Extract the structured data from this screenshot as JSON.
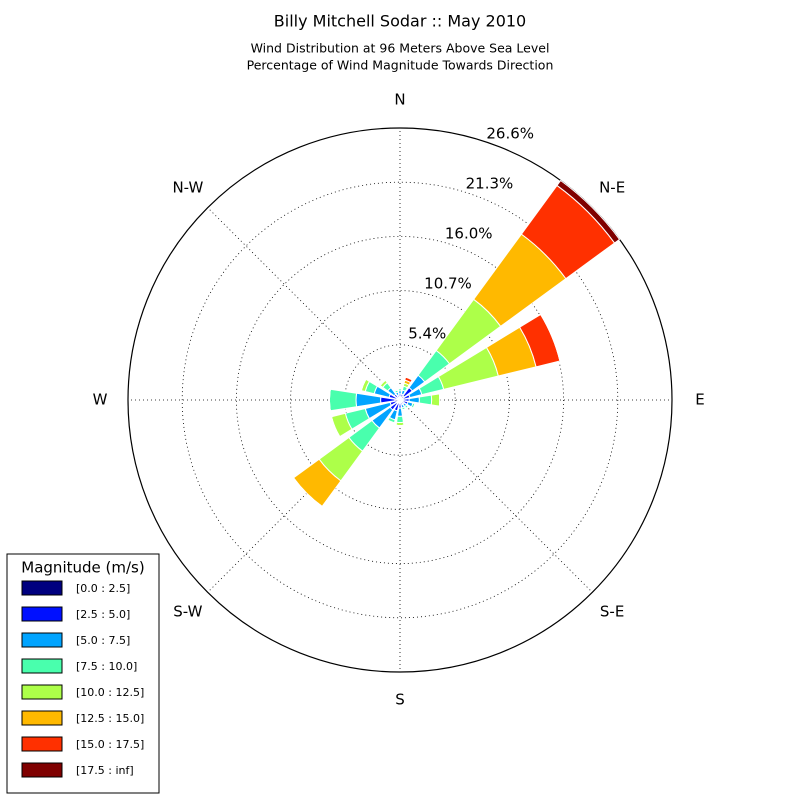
{
  "chart_data": {
    "type": "windrose",
    "title": "Billy Mitchell Sodar :: May 2010",
    "subtitle": [
      "Wind Distribution at 96 Meters Above Sea Level",
      "Percentage of Wind Magnitude Towards Direction"
    ],
    "legend_title": "Magnitude (m/s)",
    "legend": "lower left",
    "x": [
      0,
      22.5,
      45,
      67.5,
      90,
      112.5,
      135,
      157.5,
      180,
      202.5,
      225,
      247.5,
      270,
      292.5,
      315,
      337.5
    ],
    "xticks": [
      {
        "value": 0,
        "label": "N"
      },
      {
        "value": 45,
        "label": "N-E"
      },
      {
        "value": 90,
        "label": "E"
      },
      {
        "value": 135,
        "label": "S-E"
      },
      {
        "value": 180,
        "label": "S"
      },
      {
        "value": 225,
        "label": "S-W"
      },
      {
        "value": 270,
        "label": "W"
      },
      {
        "value": 315,
        "label": "N-W"
      }
    ],
    "ylim": [
      0,
      26.6
    ],
    "yticks": [
      {
        "value": 5.4,
        "label": "5.4%"
      },
      {
        "value": 10.7,
        "label": "10.7%"
      },
      {
        "value": 16.0,
        "label": "16.0%"
      },
      {
        "value": 21.3,
        "label": "21.3%"
      },
      {
        "value": 26.6,
        "label": "26.6%"
      }
    ],
    "grid": true,
    "series": [
      {
        "name": "[0.0 : 2.5]",
        "color": "#00007f",
        "values": [
          0.2,
          0.2,
          0.5,
          0.3,
          0.3,
          0.3,
          0.2,
          0.2,
          0.3,
          0.3,
          0.4,
          0.3,
          0.5,
          0.3,
          0.2,
          0.2
        ]
      },
      {
        "name": "[2.5 : 5.0]",
        "color": "#0010ff",
        "values": [
          0.4,
          0.4,
          1.0,
          0.7,
          0.6,
          0.5,
          0.3,
          0.3,
          0.5,
          0.8,
          0.8,
          0.7,
          1.4,
          0.8,
          0.5,
          0.3
        ]
      },
      {
        "name": "[5.0 : 7.5]",
        "color": "#00a4ff",
        "values": [
          0.3,
          0.4,
          1.5,
          1.2,
          1.0,
          0.5,
          0.3,
          0.3,
          0.8,
          0.9,
          2.2,
          2.5,
          2.4,
          1.5,
          0.8,
          0.3
        ]
      },
      {
        "name": "[7.5 : 10.0]",
        "color": "#49ffad",
        "values": [
          0.2,
          0.4,
          3.0,
          2.2,
          1.2,
          0.2,
          0.2,
          0.2,
          0.6,
          0.3,
          2.8,
          2.0,
          2.6,
          0.9,
          0.6,
          0.2
        ]
      },
      {
        "name": "[10.0 : 12.5]",
        "color": "#adff49",
        "values": [
          0.1,
          0.3,
          6.2,
          5.5,
          0.8,
          0.1,
          0.1,
          0.1,
          0.3,
          0.1,
          3.6,
          1.4,
          0.0,
          0.4,
          0.3,
          0.1
        ]
      },
      {
        "name": "[12.5 : 15.0]",
        "color": "#ffb900",
        "values": [
          0.0,
          0.3,
          7.9,
          3.8,
          0.0,
          0.0,
          0.0,
          0.0,
          0.0,
          0.0,
          3.1,
          0.0,
          0.0,
          0.0,
          0.0,
          0.0
        ]
      },
      {
        "name": "[15.0 : 17.5]",
        "color": "#ff3000",
        "values": [
          0.0,
          0.3,
          5.9,
          2.4,
          0.0,
          0.0,
          0.0,
          0.0,
          0.0,
          0.0,
          0.0,
          0.0,
          0.0,
          0.0,
          0.0,
          0.0
        ]
      },
      {
        "name": "[17.5 : inf]",
        "color": "#7f0000",
        "values": [
          0.0,
          0.0,
          0.6,
          0.0,
          0.0,
          0.0,
          0.0,
          0.0,
          0.0,
          0.0,
          0.0,
          0.0,
          0.0,
          0.0,
          0.0,
          0.0
        ]
      }
    ]
  }
}
